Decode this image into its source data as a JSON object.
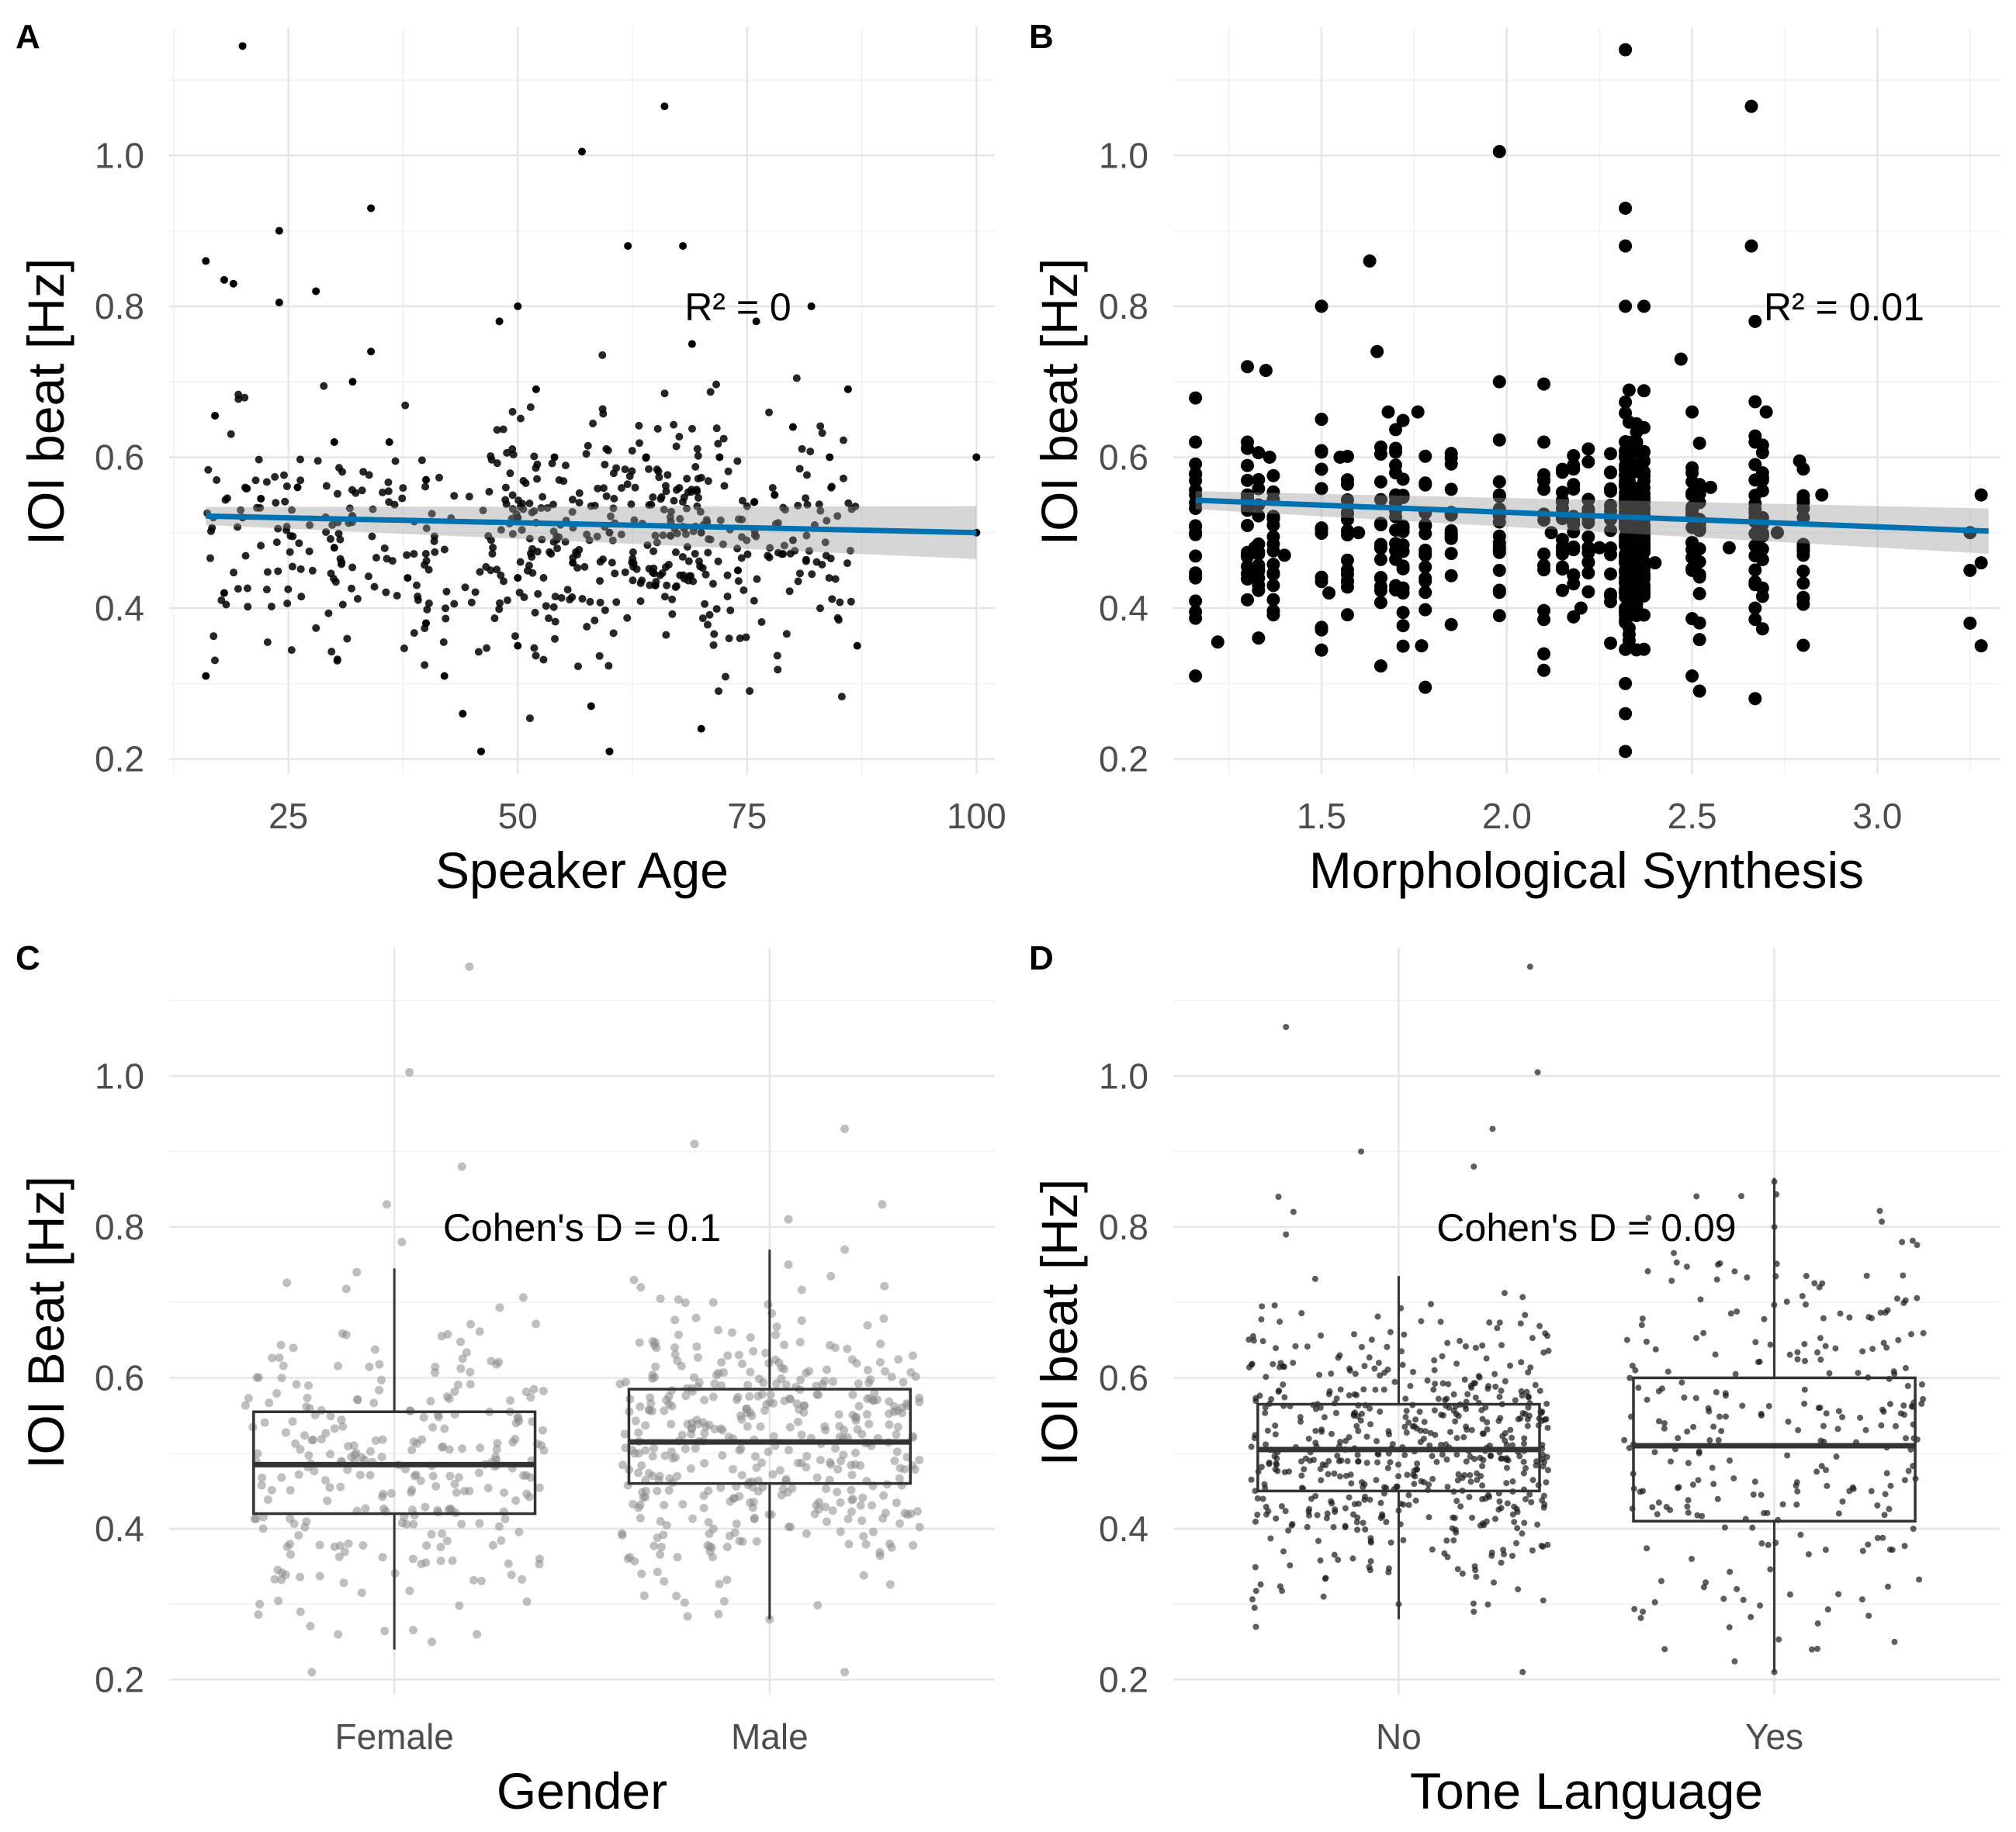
{
  "chart_data": [
    {
      "panel": "A",
      "type": "scatter",
      "xlabel": "Speaker Age",
      "ylabel": "IOI beat [Hz]",
      "xlim": [
        12,
        102
      ],
      "ylim": [
        0.18,
        1.17
      ],
      "xticks": [
        25,
        50,
        75,
        100
      ],
      "xtick_labels": [
        "25",
        "50",
        "75",
        "100"
      ],
      "yticks": [
        0.2,
        0.4,
        0.6,
        0.8,
        1.0
      ],
      "ytick_labels": [
        "0.2",
        "0.4",
        "0.6",
        "0.8",
        "1.0"
      ],
      "annotation": "R² = 0",
      "annotation_at": [
        74,
        0.8
      ],
      "trend": {
        "x": [
          16,
          100
        ],
        "y": [
          0.522,
          0.5
        ],
        "band": [
          0.012,
          0.035
        ],
        "color": "#0072B2"
      },
      "point_size": "small",
      "points": [
        [
          16,
          0.86
        ],
        [
          17,
          0.655
        ],
        [
          18,
          0.835
        ],
        [
          19,
          0.83
        ],
        [
          20,
          1.145
        ],
        [
          22,
          0.545
        ],
        [
          16,
          0.31
        ],
        [
          18,
          0.42
        ],
        [
          20,
          0.52
        ],
        [
          24,
          0.9
        ],
        [
          24,
          0.805
        ],
        [
          26,
          0.56
        ],
        [
          28,
          0.82
        ],
        [
          30,
          0.62
        ],
        [
          30,
          0.48
        ],
        [
          32,
          0.7
        ],
        [
          34,
          0.93
        ],
        [
          34,
          0.74
        ],
        [
          36,
          0.62
        ],
        [
          38,
          0.44
        ],
        [
          40,
          0.57
        ],
        [
          40,
          0.38
        ],
        [
          42,
          0.31
        ],
        [
          44,
          0.26
        ],
        [
          46,
          0.21
        ],
        [
          48,
          0.78
        ],
        [
          50,
          0.8
        ],
        [
          50,
          0.52
        ],
        [
          50,
          0.44
        ],
        [
          50,
          0.35
        ],
        [
          52,
          0.69
        ],
        [
          54,
          0.6
        ],
        [
          56,
          0.46
        ],
        [
          57,
          1.005
        ],
        [
          58,
          0.27
        ],
        [
          60,
          0.21
        ],
        [
          60,
          0.5
        ],
        [
          62,
          0.88
        ],
        [
          64,
          0.6
        ],
        [
          65,
          0.43
        ],
        [
          66,
          1.065
        ],
        [
          68,
          0.88
        ],
        [
          69,
          0.75
        ],
        [
          70,
          0.5
        ],
        [
          70,
          0.24
        ],
        [
          72,
          0.6
        ],
        [
          74,
          0.45
        ],
        [
          76,
          0.78
        ],
        [
          78,
          0.55
        ],
        [
          80,
          0.64
        ],
        [
          80,
          0.49
        ],
        [
          82,
          0.8
        ],
        [
          84,
          0.6
        ],
        [
          86,
          0.69
        ],
        [
          87,
          0.35
        ],
        [
          100,
          0.6
        ],
        [
          100,
          0.5
        ]
      ]
    },
    {
      "panel": "B",
      "type": "scatter",
      "xlabel": "Morphological Synthesis",
      "ylabel": "IOI beat [Hz]",
      "xlim": [
        1.1,
        3.33
      ],
      "ylim": [
        0.18,
        1.17
      ],
      "xticks": [
        1.5,
        2.0,
        2.5,
        3.0
      ],
      "xtick_labels": [
        "1.5",
        "2.0",
        "2.5",
        "3.0"
      ],
      "yticks": [
        0.2,
        0.4,
        0.6,
        0.8,
        1.0
      ],
      "ytick_labels": [
        "0.2",
        "0.4",
        "0.6",
        "0.8",
        "1.0"
      ],
      "annotation": "R² = 0.01",
      "annotation_at": [
        2.91,
        0.8
      ],
      "trend": {
        "x": [
          1.16,
          3.3
        ],
        "y": [
          0.543,
          0.502
        ],
        "band": [
          0.012,
          0.03
        ],
        "color": "#0072B2"
      },
      "point_size": "large",
      "points": [
        [
          1.16,
          0.62
        ],
        [
          1.16,
          0.55
        ],
        [
          1.16,
          0.5
        ],
        [
          1.16,
          0.44
        ],
        [
          1.16,
          0.395
        ],
        [
          1.16,
          0.31
        ],
        [
          1.22,
          0.355
        ],
        [
          1.3,
          0.72
        ],
        [
          1.3,
          0.62
        ],
        [
          1.3,
          0.55
        ],
        [
          1.32,
          0.48
        ],
        [
          1.35,
          0.715
        ],
        [
          1.36,
          0.6
        ],
        [
          1.37,
          0.43
        ],
        [
          1.4,
          0.47
        ],
        [
          1.5,
          0.8
        ],
        [
          1.52,
          0.42
        ],
        [
          1.55,
          0.6
        ],
        [
          1.57,
          0.57
        ],
        [
          1.6,
          0.5
        ],
        [
          1.63,
          0.86
        ],
        [
          1.65,
          0.74
        ],
        [
          1.66,
          0.44
        ],
        [
          1.68,
          0.66
        ],
        [
          1.7,
          0.55
        ],
        [
          1.72,
          0.42
        ],
        [
          1.76,
          0.66
        ],
        [
          1.77,
          0.35
        ],
        [
          1.78,
          0.295
        ],
        [
          1.98,
          0.7
        ],
        [
          1.98,
          1.005
        ],
        [
          1.98,
          0.55
        ],
        [
          1.98,
          0.45
        ],
        [
          1.98,
          0.39
        ],
        [
          2.1,
          0.62
        ],
        [
          2.12,
          0.5
        ],
        [
          2.15,
          0.58
        ],
        [
          2.2,
          0.4
        ],
        [
          2.25,
          0.48
        ],
        [
          2.32,
          1.14
        ],
        [
          2.32,
          0.93
        ],
        [
          2.32,
          0.88
        ],
        [
          2.32,
          0.8
        ],
        [
          2.32,
          0.6
        ],
        [
          2.32,
          0.52
        ],
        [
          2.32,
          0.4
        ],
        [
          2.32,
          0.3
        ],
        [
          2.32,
          0.26
        ],
        [
          2.32,
          0.21
        ],
        [
          2.35,
          0.62
        ],
        [
          2.37,
          0.8
        ],
        [
          2.4,
          0.46
        ],
        [
          2.47,
          0.73
        ],
        [
          2.5,
          0.66
        ],
        [
          2.5,
          0.55
        ],
        [
          2.5,
          0.45
        ],
        [
          2.5,
          0.31
        ],
        [
          2.52,
          0.29
        ],
        [
          2.55,
          0.56
        ],
        [
          2.6,
          0.48
        ],
        [
          2.66,
          1.065
        ],
        [
          2.66,
          0.88
        ],
        [
          2.67,
          0.78
        ],
        [
          2.67,
          0.62
        ],
        [
          2.67,
          0.52
        ],
        [
          2.67,
          0.4
        ],
        [
          2.67,
          0.28
        ],
        [
          2.7,
          0.66
        ],
        [
          2.73,
          0.5
        ],
        [
          2.79,
          0.595
        ],
        [
          2.8,
          0.52
        ],
        [
          2.85,
          0.55
        ],
        [
          3.25,
          0.5
        ],
        [
          3.25,
          0.45
        ],
        [
          3.25,
          0.38
        ],
        [
          3.28,
          0.55
        ],
        [
          3.28,
          0.46
        ],
        [
          3.28,
          0.35
        ]
      ]
    },
    {
      "panel": "C",
      "type": "box",
      "xlabel": "Gender",
      "ylabel": "IOI Beat [Hz]",
      "categories": [
        "Female",
        "Male"
      ],
      "ylim": [
        0.18,
        1.17
      ],
      "yticks": [
        0.2,
        0.4,
        0.6,
        0.8,
        1.0
      ],
      "ytick_labels": [
        "0.2",
        "0.4",
        "0.6",
        "0.8",
        "1.0"
      ],
      "annotation": "Cohen's D =  0.1",
      "annotation_at": [
        1.5,
        0.8
      ],
      "point_style": "gray",
      "boxes": [
        {
          "category": "Female",
          "min": 0.24,
          "q1": 0.42,
          "median": 0.485,
          "q3": 0.555,
          "max": 0.745
        },
        {
          "category": "Male",
          "min": 0.28,
          "q1": 0.46,
          "median": 0.515,
          "q3": 0.585,
          "max": 0.77
        }
      ],
      "points": [
        [
          1.2,
          1.145
        ],
        [
          1.04,
          1.005
        ],
        [
          1.18,
          0.88
        ],
        [
          0.9,
          0.74
        ],
        [
          0.75,
          0.29
        ],
        [
          0.85,
          0.26
        ],
        [
          1.05,
          0.36
        ],
        [
          1.1,
          0.25
        ],
        [
          0.7,
          0.6
        ],
        [
          1.2,
          0.45
        ],
        [
          1.22,
          0.26
        ],
        [
          0.78,
          0.21
        ],
        [
          0.98,
          0.83
        ],
        [
          1.02,
          0.78
        ],
        [
          2.2,
          0.77
        ],
        [
          1.8,
          0.91
        ],
        [
          2.05,
          0.75
        ],
        [
          2.2,
          0.93
        ],
        [
          2.3,
          0.83
        ],
        [
          1.85,
          0.7
        ],
        [
          2.0,
          0.28
        ],
        [
          2.32,
          0.38
        ],
        [
          1.7,
          0.45
        ],
        [
          2.25,
          0.39
        ],
        [
          2.2,
          0.21
        ],
        [
          2.05,
          0.81
        ],
        [
          1.9,
          0.66
        ],
        [
          1.85,
          0.4
        ]
      ]
    },
    {
      "panel": "D",
      "type": "box",
      "xlabel": "Tone Language",
      "ylabel": "IOI beat [Hz]",
      "categories": [
        "No",
        "Yes"
      ],
      "ylim": [
        0.18,
        1.17
      ],
      "yticks": [
        0.2,
        0.4,
        0.6,
        0.8,
        1.0
      ],
      "ytick_labels": [
        "0.2",
        "0.4",
        "0.6",
        "0.8",
        "1.0"
      ],
      "annotation": "Cohen's D =  0.09",
      "annotation_at": [
        1.5,
        0.8
      ],
      "point_style": "dark",
      "boxes": [
        {
          "category": "No",
          "min": 0.28,
          "q1": 0.45,
          "median": 0.505,
          "q3": 0.565,
          "max": 0.735
        },
        {
          "category": "Yes",
          "min": 0.21,
          "q1": 0.41,
          "median": 0.51,
          "q3": 0.6,
          "max": 0.865
        }
      ],
      "points": [
        [
          0.7,
          1.065
        ],
        [
          1.35,
          1.145
        ],
        [
          1.37,
          1.005
        ],
        [
          1.25,
          0.93
        ],
        [
          0.9,
          0.9
        ],
        [
          1.2,
          0.88
        ],
        [
          0.68,
          0.84
        ],
        [
          0.72,
          0.82
        ],
        [
          0.7,
          0.79
        ],
        [
          1.3,
          0.79
        ],
        [
          0.62,
          0.27
        ],
        [
          1.33,
          0.21
        ],
        [
          1.2,
          0.29
        ],
        [
          0.8,
          0.31
        ],
        [
          1.0,
          0.3
        ],
        [
          2.33,
          0.65
        ],
        [
          2.34,
          0.78
        ],
        [
          2.35,
          0.52
        ],
        [
          2.37,
          0.4
        ],
        [
          2.32,
          0.25
        ],
        [
          1.65,
          0.29
        ],
        [
          1.63,
          0.61
        ],
        [
          1.65,
          0.45
        ],
        [
          2.0,
          0.8
        ],
        [
          2.0,
          0.86
        ],
        [
          1.85,
          0.75
        ],
        [
          2.12,
          0.72
        ],
        [
          2.2,
          0.68
        ],
        [
          1.78,
          0.36
        ],
        [
          1.9,
          0.32
        ],
        [
          2.0,
          0.21
        ],
        [
          2.1,
          0.24
        ],
        [
          1.8,
          0.5
        ],
        [
          2.2,
          0.45
        ]
      ]
    }
  ]
}
